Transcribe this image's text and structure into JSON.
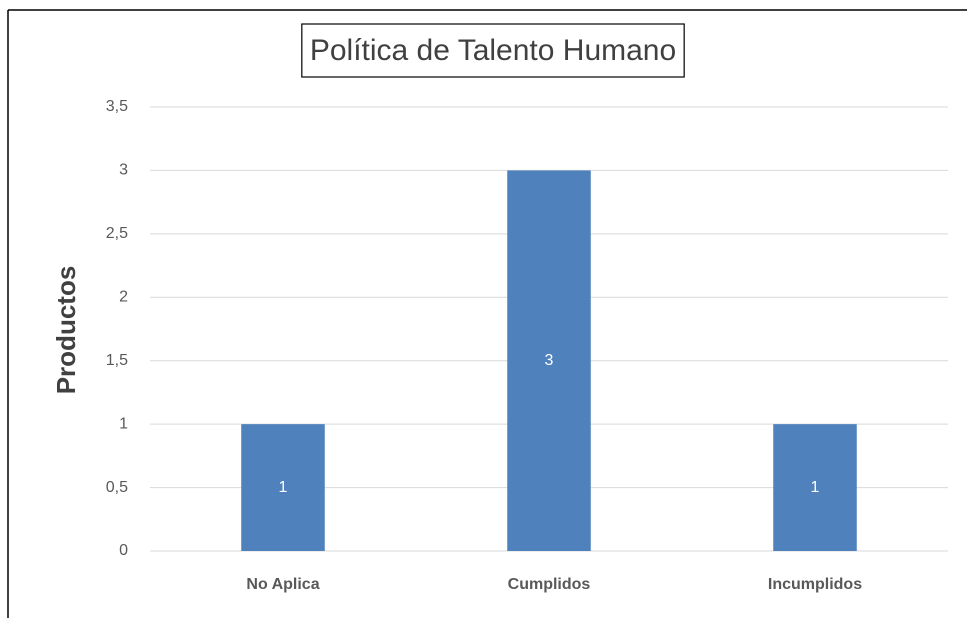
{
  "chart_data": {
    "type": "bar",
    "title": "Política de Talento Humano",
    "y_label": "Productos",
    "categories": [
      "No Aplica",
      "Cumplidos",
      "Incumplidos"
    ],
    "values": [
      1,
      3,
      1
    ],
    "color": "#4f81bd",
    "ylim": [
      0,
      3.5
    ],
    "yticks": [
      0,
      {
        "value": 0.5,
        "label": "0,5"
      },
      1,
      {
        "value": 1.5,
        "label": "1,5"
      },
      2,
      {
        "value": 2.5,
        "label": "2,5"
      },
      3,
      {
        "value": 3.5,
        "label": "3,5"
      }
    ],
    "grid": true
  }
}
